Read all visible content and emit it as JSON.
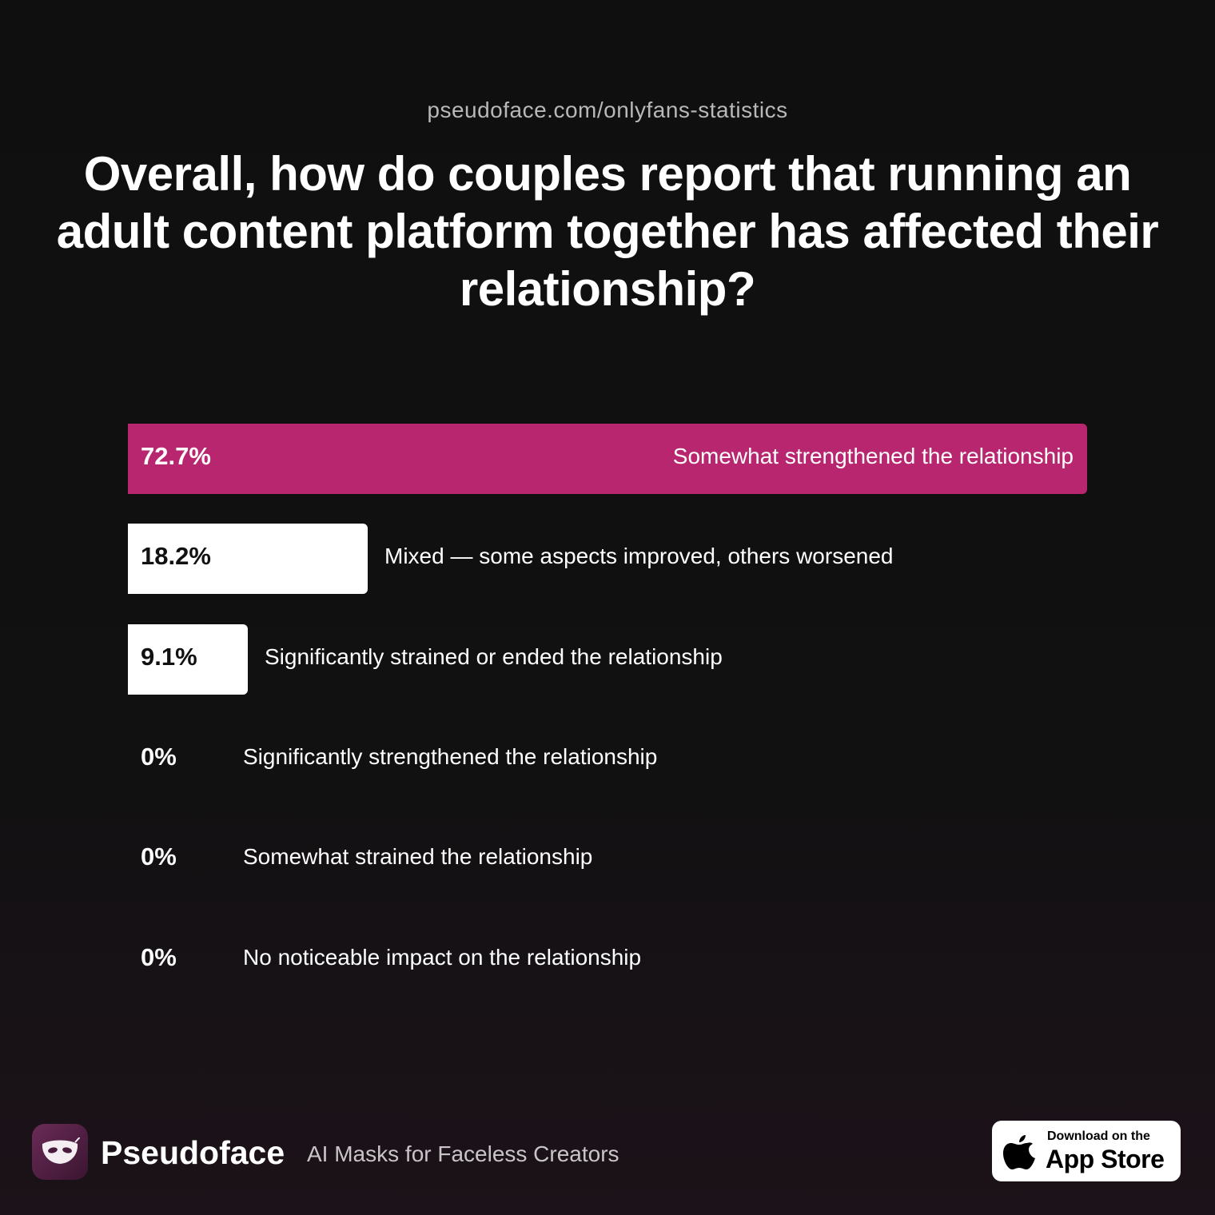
{
  "header": {
    "source_url": "pseudoface.com/onlyfans-statistics"
  },
  "chart_data": {
    "type": "bar",
    "orientation": "horizontal",
    "title": "Overall, how do couples report that running an adult content platform together has affected their relationship?",
    "categories": [
      "Somewhat strengthened the relationship",
      "Mixed — some aspects improved, others worsened",
      "Significantly strained or ended the relationship",
      "Significantly strengthened the relationship",
      "Somewhat strained the relationship",
      "No noticeable impact on the relationship"
    ],
    "values": [
      72.7,
      18.2,
      9.1,
      0,
      0,
      0
    ],
    "value_labels": [
      "72.7%",
      "18.2%",
      "9.1%",
      "0%",
      "0%",
      "0%"
    ],
    "xlim": [
      0,
      72.7
    ],
    "unit": "%",
    "grid": false,
    "colors": {
      "highlight": "#b8266f",
      "bar": "#ffffff",
      "text_on_dark": "#ffffff",
      "text_on_light": "#111111"
    }
  },
  "footer": {
    "brand_name": "Pseudoface",
    "tagline": "AI Masks for Faceless Creators",
    "logo_icon": "mask-icon",
    "app_store": {
      "small_text": "Download on the",
      "big_text": "App Store",
      "icon": "apple-icon"
    }
  }
}
